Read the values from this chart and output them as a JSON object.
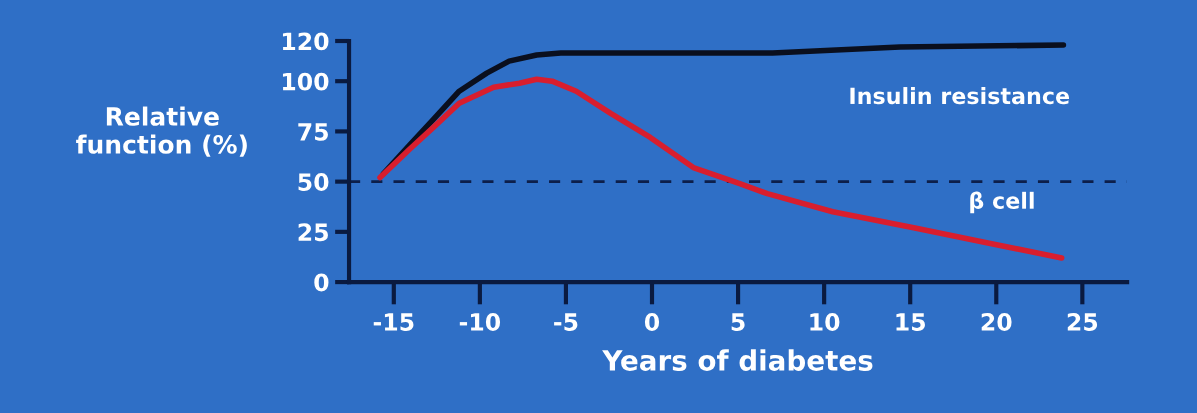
{
  "chart_data": {
    "type": "line",
    "xlabel": "Years of diabetes",
    "ylabel": "Relative\nfunction (%)",
    "xlim": [
      -17.6,
      27.6
    ],
    "ylim": [
      0,
      120
    ],
    "xticks": [
      {
        "value": -15,
        "label": "-15"
      },
      {
        "value": -10,
        "label": "-10"
      },
      {
        "value": -5,
        "label": "-5"
      },
      0,
      5,
      10,
      15,
      20,
      25
    ],
    "yticks": [
      0,
      25,
      50,
      75,
      100,
      120
    ],
    "grid": false,
    "legend": false,
    "marker": "none",
    "line_style": "solid",
    "ref_lines": [
      {
        "axis": "y",
        "value": 50,
        "color": "#0d1f4a",
        "line_style": "dashed"
      }
    ],
    "series": [
      {
        "name": "Insulin resistance",
        "color": "#0a0f1e",
        "x": [
          -15.6,
          -14.1,
          -12.7,
          -11.2,
          -9.6,
          -8.3,
          -6.7,
          -5.3,
          7.0,
          14.4,
          23.9
        ],
        "values": [
          54,
          68,
          81,
          95,
          104,
          110,
          113,
          114,
          114,
          117,
          118
        ]
      },
      {
        "name": "β cell",
        "color": "#d81e2e",
        "x": [
          -15.8,
          -14.1,
          -12.7,
          -11.2,
          -9.2,
          -7.7,
          -6.7,
          -5.8,
          -4.4,
          -2.4,
          -0.1,
          2.4,
          5.1,
          6.7,
          10.5,
          15.2,
          19.8,
          23.8
        ],
        "values": [
          52,
          66,
          77,
          89,
          97,
          99,
          101,
          100,
          95,
          84,
          72,
          57,
          49,
          44,
          35,
          27,
          19,
          12
        ]
      }
    ]
  }
}
